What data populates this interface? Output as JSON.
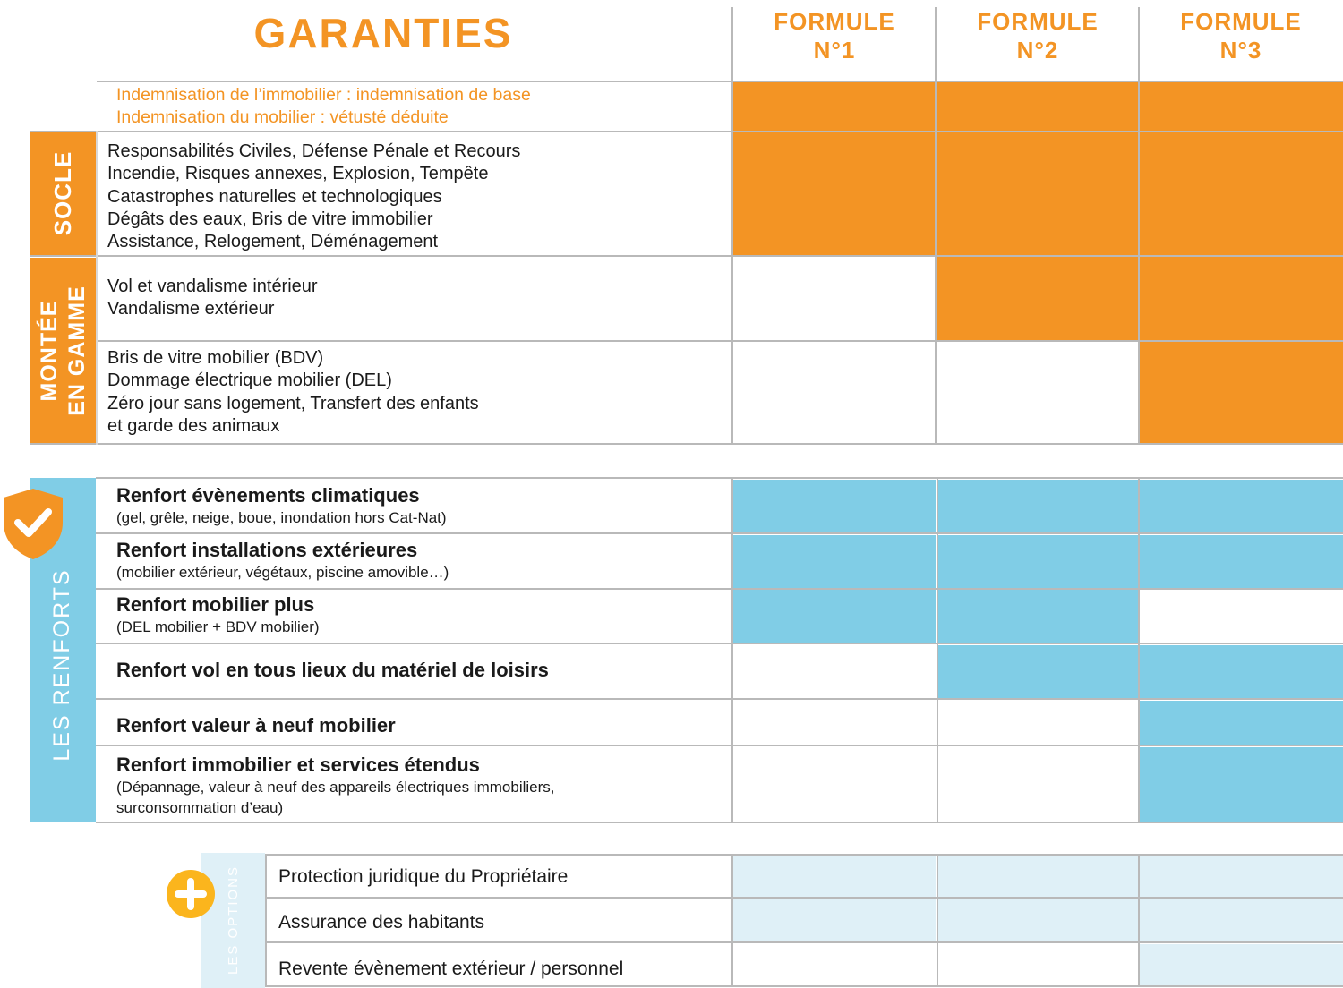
{
  "header": {
    "title": "GARANTIES",
    "formules": [
      {
        "line1": "FORMULE",
        "line2": "N°1"
      },
      {
        "line1": "FORMULE",
        "line2": "N°2"
      },
      {
        "line1": "FORMULE",
        "line2": "N°3"
      }
    ]
  },
  "base": {
    "lines": [
      "Indemnisation de l’immobilier : indemnisation de base",
      "Indemnisation du mobilier : vétusté déduite"
    ],
    "included": [
      true,
      true,
      true
    ]
  },
  "socle": {
    "label": "SOCLE",
    "lines": [
      "Responsabilités Civiles, Défense Pénale et Recours",
      "Incendie, Risques annexes, Explosion, Tempête",
      "Catastrophes naturelles et technologiques",
      "Dégâts des eaux, Bris de vitre immobilier",
      "Assistance, Relogement, Déménagement"
    ],
    "included": [
      true,
      true,
      true
    ]
  },
  "montee": {
    "label_line1": "MONTÉE",
    "label_line2": "EN GAMME",
    "rows": [
      {
        "lines": [
          "Vol et vandalisme intérieur",
          "Vandalisme extérieur"
        ],
        "included": [
          false,
          true,
          true
        ]
      },
      {
        "lines": [
          "Bris de vitre mobilier (BDV)",
          "Dommage électrique mobilier (DEL)",
          "Zéro jour sans logement, Transfert des enfants",
          "et garde des animaux"
        ],
        "included": [
          false,
          false,
          true
        ]
      }
    ]
  },
  "renforts": {
    "label": "LES RENFORTS",
    "icon": "shield-check-icon",
    "rows": [
      {
        "title": "Renfort évènements climatiques",
        "sub": [
          "(gel, grêle, neige, boue, inondation hors Cat-Nat)"
        ],
        "included": [
          true,
          true,
          true
        ]
      },
      {
        "title": "Renfort installations extérieures",
        "sub": [
          "(mobilier extérieur, végétaux, piscine amovible…)"
        ],
        "included": [
          true,
          true,
          true
        ]
      },
      {
        "title": "Renfort mobilier plus",
        "sub": [
          "(DEL mobilier + BDV mobilier)"
        ],
        "included": [
          true,
          true,
          false
        ]
      },
      {
        "title": "Renfort vol en tous lieux du matériel de loisirs",
        "sub": [],
        "included": [
          false,
          true,
          true
        ]
      },
      {
        "title": "Renfort valeur à neuf mobilier",
        "sub": [],
        "included": [
          false,
          false,
          true
        ]
      },
      {
        "title": "Renfort immobilier et services étendus",
        "sub": [
          "(Dépannage, valeur à neuf des appareils électriques immobiliers,",
          "surconsommation d’eau)"
        ],
        "included": [
          false,
          false,
          true
        ]
      }
    ]
  },
  "options": {
    "label": "LES OPTIONS",
    "icon": "plus-icon",
    "rows": [
      {
        "label": "Protection juridique du Propriétaire",
        "included": [
          true,
          true,
          true
        ]
      },
      {
        "label": "Assurance des habitants",
        "included": [
          true,
          true,
          true
        ]
      },
      {
        "label": "Revente évènement extérieur / personnel",
        "included": [
          false,
          false,
          true
        ]
      }
    ]
  },
  "colors": {
    "orange": "#f39424",
    "blue": "#80cde6",
    "lightblue": "#dff0f7"
  }
}
